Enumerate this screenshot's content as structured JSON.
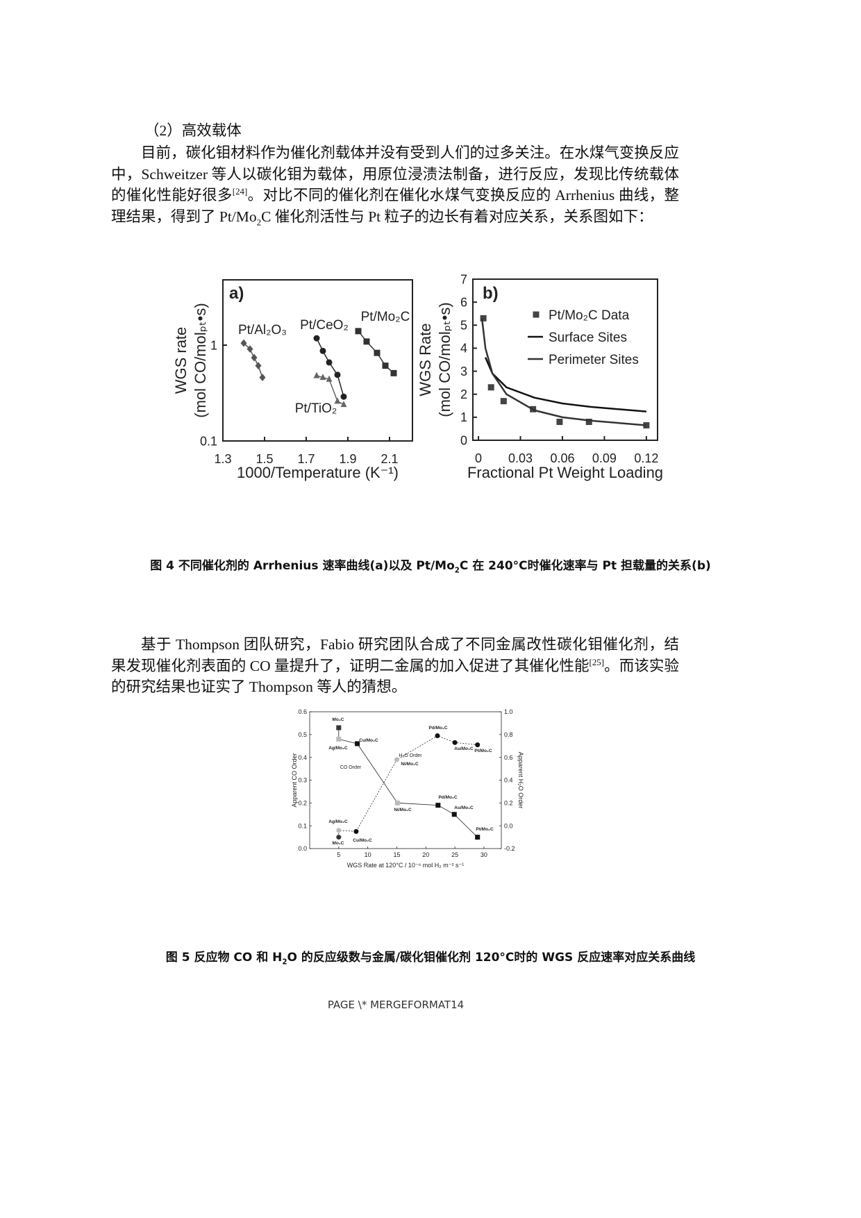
{
  "heading": "（2）高效载体",
  "paragraph_1": [
    "目前，碳化钼材料作为催化剂载体并没有受到人们的过多关注。在水煤气变换反应中，Schweitzer 等人以碳化钼为载体，用原位浸渍法制备，进行反应，发现比传统载体的催化性能好很多",
    "[24]",
    "。对比不同的催化剂在催化水煤气变换反应的 Arrhenius 曲线，整理结果，得到了 Pt/Mo",
    "2",
    "C 催化剂活性与 Pt 粒子的边长有着对应关系，关系图如下："
  ],
  "caption_4": [
    "图 4 不同催化剂的 Arrhenius 速率曲线(a)以及 Pt/Mo",
    "2",
    "C 在 240°C时催化速率与 Pt 担载量的关系(b)"
  ],
  "paragraph_2": [
    "基于 Thompson 团队研究，Fabio 研究团队合成了不同金属改性碳化钼催化剂，结果发现催化剂表面的 CO 量提升了，证明二金属的加入促进了其催化性能",
    "[25]",
    "。而该实验的研究结果也证实了 Thompson 等人的猜想。"
  ],
  "caption_5": [
    "图 5 反应物 CO 和 H",
    "2",
    "O 的反应级数与金属/碳化钼催化剂 120°C时的 WGS 反应速率对应关系曲线"
  ],
  "footer": "PAGE   \\* MERGEFORMAT14",
  "chart_data": [
    {
      "type": "scatter",
      "panel_label": "a)",
      "xlabel": "1000/Temperature (K⁻¹)",
      "ylabel": [
        "WGS rate",
        "(mol CO/molₚₜ•s)"
      ],
      "xlim": [
        1.3,
        2.21
      ],
      "ylim": [
        0.1,
        4.8
      ],
      "ylog": true,
      "xticks": [
        1.3,
        1.5,
        1.7,
        1.9,
        2.1
      ],
      "yticks": [
        0.1,
        1
      ],
      "series": [
        {
          "name": "Pt/Al₂O₃",
          "marker": "diamond",
          "mode": "lines+markers",
          "color": "#555555",
          "x": [
            1.4,
            1.43,
            1.45,
            1.47,
            1.49
          ],
          "values": [
            1.05,
            0.91,
            0.74,
            0.61,
            0.46
          ]
        },
        {
          "name": "Pt/CeO₂",
          "marker": "circle",
          "mode": "lines+markers",
          "color": "#222222",
          "x": [
            1.75,
            1.78,
            1.81,
            1.85,
            1.88
          ],
          "values": [
            1.18,
            0.87,
            0.66,
            0.49,
            0.29
          ]
        },
        {
          "name": "Pt/TiO₂",
          "marker": "triangle",
          "mode": "lines+markers",
          "color": "#666666",
          "x": [
            1.75,
            1.78,
            1.81,
            1.85,
            1.88
          ],
          "values": [
            0.48,
            0.46,
            0.44,
            0.26,
            0.24
          ]
        },
        {
          "name": "Pt/Mo₂C",
          "marker": "square",
          "mode": "lines+markers",
          "color": "#333333",
          "x": [
            1.95,
            1.99,
            2.04,
            2.08,
            2.12
          ],
          "values": [
            1.4,
            1.09,
            0.83,
            0.61,
            0.51
          ]
        }
      ]
    },
    {
      "type": "scatter",
      "panel_label": "b)",
      "xlabel": "Fractional Pt Weight Loading",
      "ylabel": [
        "WGS Rate",
        "(mol CO/molₚₜ•s)"
      ],
      "xlim": [
        -0.004,
        0.128
      ],
      "ylim": [
        0,
        7
      ],
      "xticks": [
        0,
        0.03,
        0.06,
        0.09,
        0.12
      ],
      "yticks": [
        0,
        1,
        2,
        3,
        4,
        5,
        6,
        7
      ],
      "legend": "upper right",
      "series": [
        {
          "name": "Pt/Mo₂C Data",
          "marker": "square",
          "mode": "markers",
          "color": "#444444",
          "x": [
            0.0035,
            0.009,
            0.018,
            0.039,
            0.058,
            0.079,
            0.12
          ],
          "values": [
            5.3,
            2.3,
            1.7,
            1.35,
            0.8,
            0.8,
            0.65
          ]
        },
        {
          "name": "Surface Sites",
          "mode": "lines",
          "color": "#111111",
          "x": [
            0.005,
            0.01,
            0.02,
            0.04,
            0.06,
            0.08,
            0.1,
            0.12
          ],
          "values": [
            3.6,
            2.9,
            2.3,
            1.85,
            1.6,
            1.45,
            1.35,
            1.25
          ]
        },
        {
          "name": "Perimeter Sites",
          "mode": "lines",
          "color": "#333333",
          "x": [
            0.0025,
            0.005,
            0.01,
            0.02,
            0.04,
            0.06,
            0.08,
            0.1,
            0.12
          ],
          "values": [
            5.3,
            4.0,
            2.9,
            2.0,
            1.3,
            1.0,
            0.85,
            0.75,
            0.65
          ]
        }
      ]
    },
    {
      "type": "scatter",
      "xlabel": "WGS Rate at 120°C / 10⁻⁶ mol H₂ m⁻² s⁻¹",
      "ylabel": "Apparent CO Order",
      "y2label": "Apparent H₂O Order",
      "xlim": [
        0,
        33
      ],
      "ylim": [
        0,
        0.6
      ],
      "y2lim": [
        -0.2,
        1.0
      ],
      "xticks": [
        5,
        10,
        15,
        20,
        25,
        30
      ],
      "yticks": [
        {
          "value": 0,
          "label": "0.0"
        },
        0.1,
        0.2,
        0.3,
        0.4,
        0.5,
        0.6
      ],
      "y2ticks": [
        -0.2,
        {
          "value": 0,
          "label": "0.0"
        },
        0.2,
        0.4,
        0.6,
        0.8,
        {
          "value": 1,
          "label": "1.0"
        }
      ],
      "series": [
        {
          "name": "CO Order",
          "marker": "square",
          "mode": "lines+markers",
          "line": "solid",
          "colors": [
            "#333333",
            "#bbbbbb",
            "#111111",
            "#bbbbbb",
            "#111111",
            "#111111",
            "#111111"
          ],
          "point_labels": [
            "Mo₂C",
            "Ag/Mo₂C",
            "Cu/Mo₂C",
            "Ni/Mo₂C",
            "Pd/Mo₂C",
            "Au/Mo₂C",
            "Pt/Mo₂C"
          ],
          "x": [
            5,
            5,
            8.2,
            15.1,
            22.1,
            24.9,
            28.9
          ],
          "values": [
            0.53,
            0.48,
            0.46,
            0.2,
            0.19,
            0.15,
            0.05
          ]
        },
        {
          "name": "H₂O Order",
          "axis": "y2",
          "marker": "circle",
          "mode": "lines+markers",
          "line": "dotted",
          "colors": [
            "#333333",
            "#bbbbbb",
            "#111111",
            "#bbbbbb",
            "#111111",
            "#111111",
            "#111111"
          ],
          "point_labels": [
            "Mo₂C",
            "Ag/Mo₂C",
            "Cu/Mo₂C",
            "Ni/Mo₂C",
            "Pd/Mo₂C",
            "Au/Mo₂C",
            "Pt/Mo₂C"
          ],
          "x": [
            5,
            5,
            8,
            15,
            22,
            25,
            28.9
          ],
          "values": [
            -0.1,
            -0.04,
            -0.05,
            0.58,
            0.79,
            0.73,
            0.71
          ]
        }
      ]
    }
  ]
}
